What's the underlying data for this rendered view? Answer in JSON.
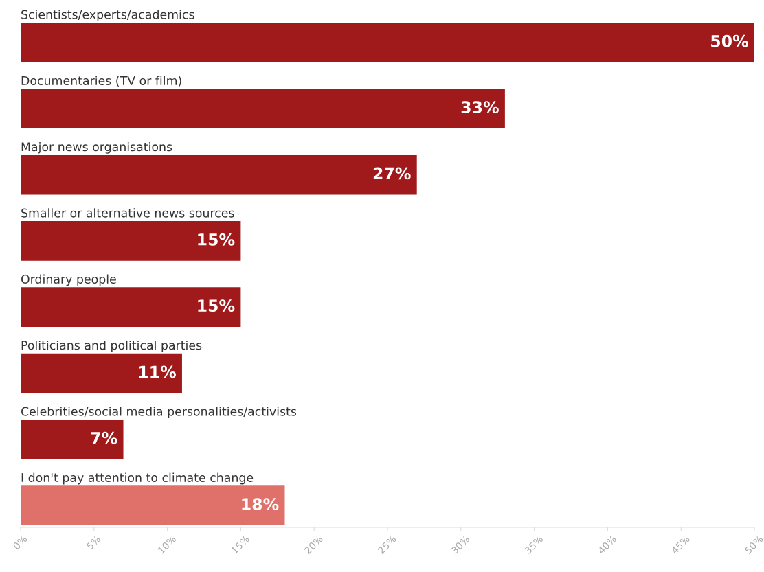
{
  "chart_data": {
    "type": "bar",
    "orientation": "horizontal",
    "categories": [
      "Scientists/experts/academics",
      "Documentaries (TV or film)",
      "Major news organisations",
      "Smaller or alternative news sources",
      "Ordinary people",
      "Politicians and political parties",
      "Celebrities/social media personalities/activists",
      "I don't pay attention to climate change"
    ],
    "values": [
      50,
      33,
      27,
      15,
      15,
      11,
      7,
      18
    ],
    "colors": [
      "#a0191b",
      "#a0191b",
      "#a0191b",
      "#a0191b",
      "#a0191b",
      "#a0191b",
      "#a0191b",
      "#e0716a"
    ],
    "value_labels": [
      "50%",
      "33%",
      "27%",
      "15%",
      "15%",
      "11%",
      "7%",
      "18%"
    ],
    "xlim": [
      0,
      50
    ],
    "xticks": [
      {
        "value": 0,
        "label": "0%"
      },
      {
        "value": 5,
        "label": "5%"
      },
      {
        "value": 10,
        "label": "10%"
      },
      {
        "value": 15,
        "label": "15%"
      },
      {
        "value": 20,
        "label": "20%"
      },
      {
        "value": 25,
        "label": "25%"
      },
      {
        "value": 30,
        "label": "30%"
      },
      {
        "value": 35,
        "label": "35%"
      },
      {
        "value": 40,
        "label": "40%"
      },
      {
        "value": 45,
        "label": "45%"
      },
      {
        "value": 50,
        "label": "50%"
      }
    ],
    "tick_labels": "x",
    "grid": false,
    "legend": false
  }
}
